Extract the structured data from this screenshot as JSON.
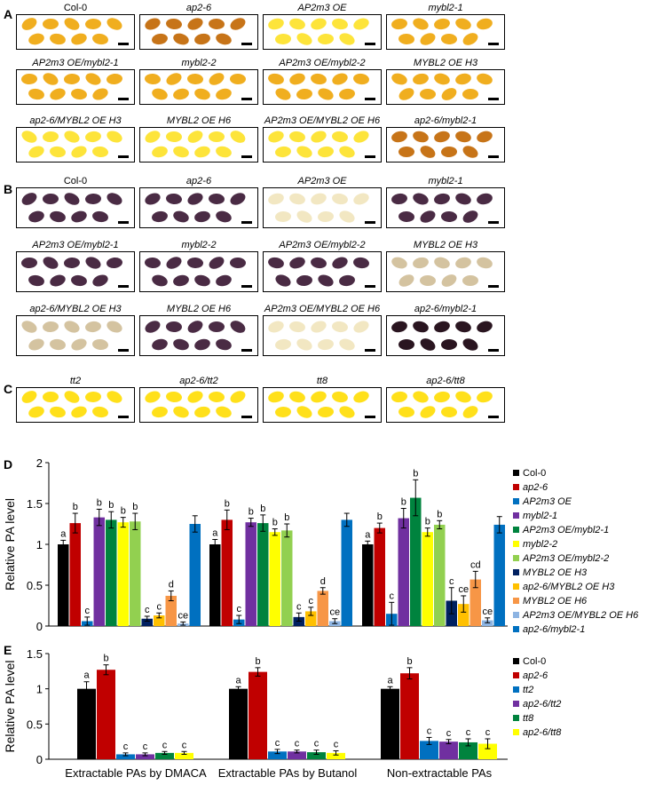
{
  "panels": {
    "A": "A",
    "B": "B",
    "C": "C",
    "D": "D",
    "E": "E"
  },
  "seed_colors": {
    "dark_orange": "#c77418",
    "orange": "#e89a18",
    "light_orange": "#f0ae1f",
    "yellow": "#fde43a",
    "purple": "#4a2b44",
    "dark_purple": "#2a1520",
    "tan": "#d4c3a0",
    "pale": "#f2e7c2",
    "bright_yellow": "#ffe01a"
  },
  "panel_a_tiles": [
    {
      "label": "Col-0",
      "italic": false,
      "seed": "light_orange"
    },
    {
      "label": "ap2-6",
      "italic": true,
      "seed": "dark_orange"
    },
    {
      "label": "AP2m3 OE",
      "italic": true,
      "seed": "yellow"
    },
    {
      "label": "mybl2-1",
      "italic": true,
      "seed": "light_orange"
    },
    {
      "label": "AP2m3 OE/mybl2-1",
      "italic": true,
      "seed": "light_orange"
    },
    {
      "label": "mybl2-2",
      "italic": true,
      "seed": "light_orange"
    },
    {
      "label": "AP2m3 OE/mybl2-2",
      "italic": true,
      "seed": "light_orange"
    },
    {
      "label": "MYBL2 OE H3",
      "italic": true,
      "seed": "light_orange"
    },
    {
      "label": "ap2-6/MYBL2 OE H3",
      "italic": true,
      "seed": "yellow"
    },
    {
      "label": "MYBL2 OE H6",
      "italic": true,
      "seed": "yellow"
    },
    {
      "label": "AP2m3 OE/MYBL2 OE H6",
      "italic": true,
      "seed": "yellow"
    },
    {
      "label": "ap2-6/mybl2-1",
      "italic": true,
      "seed": "dark_orange"
    }
  ],
  "panel_b_tiles": [
    {
      "label": "Col-0",
      "italic": false,
      "seed": "purple"
    },
    {
      "label": "ap2-6",
      "italic": true,
      "seed": "purple"
    },
    {
      "label": "AP2m3 OE",
      "italic": true,
      "seed": "pale"
    },
    {
      "label": "mybl2-1",
      "italic": true,
      "seed": "purple"
    },
    {
      "label": "AP2m3 OE/mybl2-1",
      "italic": true,
      "seed": "purple"
    },
    {
      "label": "mybl2-2",
      "italic": true,
      "seed": "purple"
    },
    {
      "label": "AP2m3 OE/mybl2-2",
      "italic": true,
      "seed": "purple"
    },
    {
      "label": "MYBL2 OE H3",
      "italic": true,
      "seed": "tan"
    },
    {
      "label": "ap2-6/MYBL2 OE H3",
      "italic": true,
      "seed": "tan"
    },
    {
      "label": "MYBL2 OE H6",
      "italic": true,
      "seed": "purple"
    },
    {
      "label": "AP2m3 OE/MYBL2 OE H6",
      "italic": true,
      "seed": "pale"
    },
    {
      "label": "ap2-6/mybl2-1",
      "italic": true,
      "seed": "dark_purple"
    }
  ],
  "panel_c_tiles": [
    {
      "label": "tt2",
      "italic": true,
      "seed": "bright_yellow"
    },
    {
      "label": "ap2-6/tt2",
      "italic": true,
      "seed": "bright_yellow"
    },
    {
      "label": "tt8",
      "italic": true,
      "seed": "bright_yellow"
    },
    {
      "label": "ap2-6/tt8",
      "italic": true,
      "seed": "bright_yellow"
    }
  ],
  "chart_data": [
    {
      "id": "D",
      "type": "bar",
      "ylabel": "Relative PA level",
      "ylim": [
        0,
        2
      ],
      "yticks": [
        "0",
        "0.5",
        "1",
        "1.5",
        "2"
      ],
      "categories": [
        "Extractable PAs by DMACA",
        "Extractable PAs by Butanol",
        "Non-extractable PAs"
      ],
      "series": [
        {
          "name": "Col-0",
          "italic": false,
          "color": "#000000",
          "values": [
            1.0,
            1.0,
            1.0
          ],
          "errors": [
            0.05,
            0.06,
            0.04
          ],
          "letters": [
            "a",
            "a",
            "a"
          ]
        },
        {
          "name": "ap2-6",
          "italic": true,
          "color": "#c00000",
          "values": [
            1.26,
            1.3,
            1.2
          ],
          "errors": [
            0.12,
            0.12,
            0.06
          ],
          "letters": [
            "b",
            "b",
            "b"
          ]
        },
        {
          "name": "AP2m3 OE",
          "italic": true,
          "color": "#0070c0",
          "values": [
            0.06,
            0.08,
            0.15
          ],
          "errors": [
            0.05,
            0.05,
            0.14
          ],
          "letters": [
            "c",
            "c",
            "c"
          ]
        },
        {
          "name": "mybl2-1",
          "italic": true,
          "color": "#7030a0",
          "values": [
            1.33,
            1.27,
            1.32
          ],
          "errors": [
            0.1,
            0.05,
            0.12
          ],
          "letters": [
            "b",
            "b",
            "b"
          ]
        },
        {
          "name": "AP2m3 OE/mybl2-1",
          "italic": true,
          "color": "#00833e",
          "values": [
            1.3,
            1.26,
            1.57
          ],
          "errors": [
            0.1,
            0.1,
            0.22
          ],
          "letters": [
            "b",
            "b",
            "b"
          ]
        },
        {
          "name": "mybl2-2",
          "italic": true,
          "color": "#ffff00",
          "values": [
            1.27,
            1.15,
            1.15
          ],
          "errors": [
            0.06,
            0.04,
            0.05
          ],
          "letters": [
            "b",
            "b",
            "b"
          ]
        },
        {
          "name": "AP2m3 OE/mybl2-2",
          "italic": true,
          "color": "#92d050",
          "values": [
            1.28,
            1.17,
            1.24
          ],
          "errors": [
            0.1,
            0.08,
            0.05
          ],
          "letters": [
            "b",
            "b",
            "b"
          ]
        },
        {
          "name": "MYBL2 OE H3",
          "italic": true,
          "color": "#002060",
          "values": [
            0.09,
            0.11,
            0.31
          ],
          "errors": [
            0.03,
            0.05,
            0.16
          ],
          "letters": [
            "c",
            "c",
            "c"
          ]
        },
        {
          "name": "ap2-6/MYBL2 OE H3",
          "italic": true,
          "color": "#ffc000",
          "values": [
            0.13,
            0.18,
            0.27
          ],
          "errors": [
            0.03,
            0.05,
            0.1
          ],
          "letters": [
            "c",
            "c",
            "ce"
          ]
        },
        {
          "name": "MYBL2 OE H6",
          "italic": true,
          "color": "#f79646",
          "values": [
            0.37,
            0.43,
            0.57
          ],
          "errors": [
            0.06,
            0.04,
            0.1
          ],
          "letters": [
            "d",
            "d",
            "cd"
          ]
        },
        {
          "name": "AP2m3 OE/MYBL2 OE H6",
          "italic": true,
          "color": "#8db4e2",
          "values": [
            0.03,
            0.06,
            0.07
          ],
          "errors": [
            0.02,
            0.03,
            0.03
          ],
          "letters": [
            "ce",
            "ce",
            "ce"
          ]
        },
        {
          "name": "ap2-6/mybl2-1",
          "italic": true,
          "color": "#0070c0",
          "values": [
            1.25,
            1.3,
            1.24
          ],
          "errors": [
            0.1,
            0.08,
            0.1
          ],
          "letters": [
            "",
            "",
            ""
          ]
        }
      ]
    },
    {
      "id": "E",
      "type": "bar",
      "ylabel": "Relative PA level",
      "ylim": [
        0,
        1.5
      ],
      "yticks": [
        "0",
        "0.5",
        "1",
        "1.5"
      ],
      "categories": [
        "Extractable PAs by DMACA",
        "Extractable PAs by Butanol",
        "Non-extractable PAs"
      ],
      "series": [
        {
          "name": "Col-0",
          "italic": false,
          "color": "#000000",
          "values": [
            1.0,
            1.0,
            1.0
          ],
          "errors": [
            0.1,
            0.03,
            0.03
          ],
          "letters": [
            "a",
            "a",
            "a"
          ]
        },
        {
          "name": "ap2-6",
          "italic": true,
          "color": "#c00000",
          "values": [
            1.27,
            1.24,
            1.22
          ],
          "errors": [
            0.07,
            0.06,
            0.08
          ],
          "letters": [
            "b",
            "b",
            "b"
          ]
        },
        {
          "name": "tt2",
          "italic": true,
          "color": "#0070c0",
          "values": [
            0.07,
            0.11,
            0.26
          ],
          "errors": [
            0.02,
            0.03,
            0.05
          ],
          "letters": [
            "c",
            "c",
            "c"
          ]
        },
        {
          "name": "ap2-6/tt2",
          "italic": true,
          "color": "#7030a0",
          "values": [
            0.07,
            0.11,
            0.25
          ],
          "errors": [
            0.02,
            0.02,
            0.03
          ],
          "letters": [
            "c",
            "c",
            "c"
          ]
        },
        {
          "name": "tt8",
          "italic": true,
          "color": "#00833e",
          "values": [
            0.09,
            0.1,
            0.24
          ],
          "errors": [
            0.02,
            0.03,
            0.05
          ],
          "letters": [
            "c",
            "c",
            "c"
          ]
        },
        {
          "name": "ap2-6/tt8",
          "italic": true,
          "color": "#ffff00",
          "values": [
            0.09,
            0.09,
            0.22
          ],
          "errors": [
            0.02,
            0.03,
            0.07
          ],
          "letters": [
            "c",
            "c",
            "c"
          ]
        }
      ]
    }
  ]
}
